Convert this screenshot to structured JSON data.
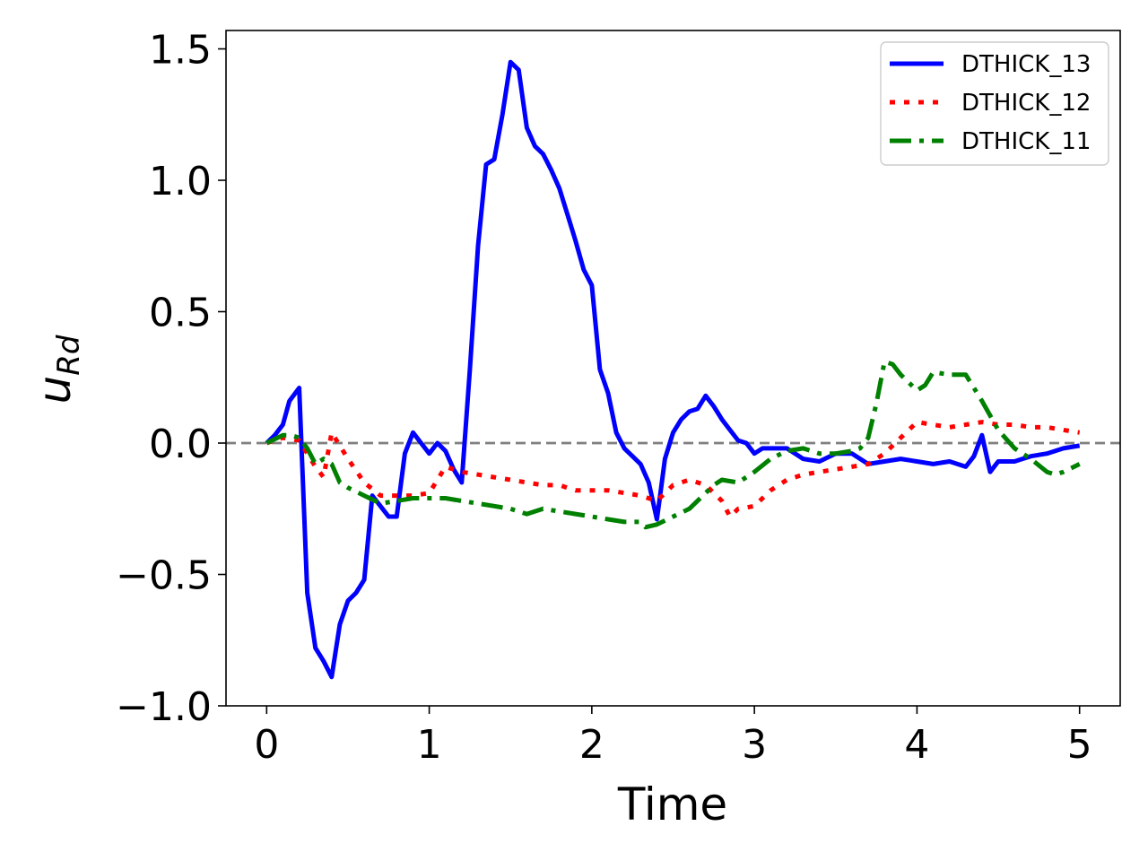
{
  "chart_data": {
    "type": "line",
    "title": "",
    "xlabel": "Time",
    "ylabel_main": "u",
    "ylabel_sub": "Rd",
    "xlim": [
      -0.25,
      5.25
    ],
    "ylim": [
      -1.0,
      1.57
    ],
    "xticks": [
      0,
      1,
      2,
      3,
      4,
      5
    ],
    "xtick_labels": [
      "0",
      "1",
      "2",
      "3",
      "4",
      "5"
    ],
    "yticks": [
      1.5,
      1.0,
      0.5,
      0.0,
      -0.5,
      -1.0
    ],
    "ytick_labels": [
      "1.5",
      "1.0",
      "0.5",
      "0.0",
      "−0.5",
      "−1.0"
    ],
    "reference_line": {
      "y": 0.0,
      "color": "#808080",
      "style": "dashed"
    },
    "grid": false,
    "legend_position": "upper-right",
    "series": [
      {
        "name": "DTHICK_13",
        "color": "#0000ff",
        "style": "solid",
        "x": [
          0,
          0.05,
          0.1,
          0.14,
          0.2,
          0.25,
          0.3,
          0.35,
          0.4,
          0.45,
          0.5,
          0.55,
          0.6,
          0.65,
          0.7,
          0.75,
          0.8,
          0.85,
          0.9,
          0.95,
          1.0,
          1.05,
          1.1,
          1.15,
          1.2,
          1.25,
          1.3,
          1.35,
          1.4,
          1.45,
          1.5,
          1.55,
          1.6,
          1.65,
          1.7,
          1.75,
          1.8,
          1.85,
          1.9,
          1.95,
          2.0,
          2.05,
          2.1,
          2.15,
          2.2,
          2.25,
          2.3,
          2.35,
          2.4,
          2.42,
          2.45,
          2.5,
          2.55,
          2.6,
          2.65,
          2.7,
          2.75,
          2.8,
          2.85,
          2.9,
          2.95,
          3.0,
          3.05,
          3.1,
          3.2,
          3.3,
          3.4,
          3.5,
          3.6,
          3.7,
          3.8,
          3.9,
          4.0,
          4.1,
          4.2,
          4.3,
          4.35,
          4.4,
          4.45,
          4.5,
          4.6,
          4.7,
          4.8,
          4.9,
          5.0
        ],
        "y": [
          0.0,
          0.03,
          0.07,
          0.16,
          0.21,
          -0.57,
          -0.78,
          -0.83,
          -0.89,
          -0.69,
          -0.6,
          -0.57,
          -0.52,
          -0.2,
          -0.24,
          -0.28,
          -0.28,
          -0.04,
          0.04,
          0.0,
          -0.04,
          0.0,
          -0.03,
          -0.1,
          -0.15,
          0.28,
          0.75,
          1.06,
          1.08,
          1.25,
          1.45,
          1.42,
          1.2,
          1.13,
          1.1,
          1.04,
          0.97,
          0.87,
          0.77,
          0.66,
          0.6,
          0.28,
          0.19,
          0.04,
          -0.02,
          -0.05,
          -0.08,
          -0.15,
          -0.29,
          -0.2,
          -0.06,
          0.04,
          0.09,
          0.12,
          0.13,
          0.18,
          0.14,
          0.09,
          0.05,
          0.01,
          0.0,
          -0.04,
          -0.02,
          -0.02,
          -0.02,
          -0.06,
          -0.07,
          -0.04,
          -0.04,
          -0.08,
          -0.07,
          -0.06,
          -0.07,
          -0.08,
          -0.07,
          -0.09,
          -0.05,
          0.03,
          -0.11,
          -0.07,
          -0.07,
          -0.05,
          -0.04,
          -0.02,
          -0.01
        ]
      },
      {
        "name": "DTHICK_12",
        "color": "#ff0000",
        "style": "dotted",
        "x": [
          0,
          0.1,
          0.2,
          0.3,
          0.35,
          0.4,
          0.5,
          0.6,
          0.7,
          0.8,
          0.9,
          1.0,
          1.05,
          1.1,
          1.2,
          1.3,
          1.4,
          1.5,
          1.6,
          1.7,
          1.8,
          1.9,
          2.0,
          2.1,
          2.2,
          2.3,
          2.4,
          2.5,
          2.6,
          2.7,
          2.8,
          2.85,
          2.9,
          3.0,
          3.1,
          3.2,
          3.3,
          3.4,
          3.5,
          3.6,
          3.7,
          3.8,
          3.9,
          4.0,
          4.1,
          4.2,
          4.3,
          4.4,
          4.5,
          4.6,
          4.7,
          4.8,
          4.9,
          5.0
        ],
        "y": [
          0.0,
          0.02,
          0.01,
          -0.09,
          -0.13,
          0.04,
          -0.06,
          -0.15,
          -0.2,
          -0.2,
          -0.2,
          -0.19,
          -0.14,
          -0.09,
          -0.11,
          -0.12,
          -0.13,
          -0.14,
          -0.15,
          -0.16,
          -0.16,
          -0.18,
          -0.18,
          -0.18,
          -0.19,
          -0.2,
          -0.22,
          -0.16,
          -0.14,
          -0.16,
          -0.22,
          -0.28,
          -0.25,
          -0.24,
          -0.18,
          -0.14,
          -0.12,
          -0.11,
          -0.1,
          -0.09,
          -0.08,
          -0.04,
          0.02,
          0.08,
          0.07,
          0.06,
          0.07,
          0.08,
          0.07,
          0.07,
          0.06,
          0.06,
          0.05,
          0.04
        ]
      },
      {
        "name": "DTHICK_11",
        "color": "#008000",
        "style": "dashdot",
        "x": [
          0,
          0.1,
          0.15,
          0.2,
          0.25,
          0.3,
          0.35,
          0.4,
          0.45,
          0.5,
          0.6,
          0.7,
          0.8,
          0.9,
          1.0,
          1.1,
          1.2,
          1.3,
          1.4,
          1.5,
          1.6,
          1.7,
          1.8,
          1.9,
          2.0,
          2.1,
          2.2,
          2.3,
          2.33,
          2.4,
          2.5,
          2.6,
          2.7,
          2.75,
          2.8,
          2.9,
          3.0,
          3.1,
          3.2,
          3.3,
          3.4,
          3.5,
          3.6,
          3.65,
          3.7,
          3.75,
          3.8,
          3.85,
          3.9,
          4.0,
          4.05,
          4.1,
          4.2,
          4.3,
          4.4,
          4.5,
          4.6,
          4.7,
          4.8,
          4.85,
          4.9,
          5.0
        ],
        "y": [
          0.0,
          0.03,
          0.03,
          0.02,
          -0.02,
          -0.08,
          -0.06,
          -0.08,
          -0.15,
          -0.17,
          -0.2,
          -0.23,
          -0.22,
          -0.21,
          -0.21,
          -0.21,
          -0.22,
          -0.23,
          -0.24,
          -0.25,
          -0.27,
          -0.25,
          -0.26,
          -0.27,
          -0.28,
          -0.29,
          -0.3,
          -0.3,
          -0.32,
          -0.31,
          -0.28,
          -0.25,
          -0.19,
          -0.16,
          -0.14,
          -0.15,
          -0.11,
          -0.06,
          -0.03,
          -0.02,
          -0.04,
          -0.04,
          -0.03,
          -0.02,
          0.02,
          0.15,
          0.31,
          0.3,
          0.26,
          0.2,
          0.22,
          0.27,
          0.26,
          0.26,
          0.16,
          0.05,
          -0.02,
          -0.06,
          -0.11,
          -0.12,
          -0.11,
          -0.08
        ]
      }
    ]
  }
}
